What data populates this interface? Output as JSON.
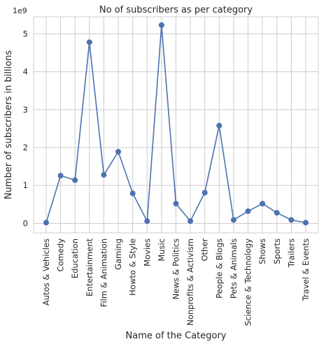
{
  "chart_data": {
    "type": "line",
    "title": "No of subscribers as per category",
    "xlabel": "Name of the Category",
    "ylabel": "Number of subscribers in billions",
    "y_offset_label": "1e9",
    "grid": true,
    "ylim": [
      -0.25,
      5.45
    ],
    "yticks": [
      0,
      1,
      2,
      3,
      4,
      5
    ],
    "ytick_labels": [
      "0",
      "1",
      "2",
      "3",
      "4",
      "5"
    ],
    "categories": [
      "Autos & Vehicles",
      "Comedy",
      "Education",
      "Entertainment",
      "Film & Animation",
      "Gaming",
      "Howto & Style",
      "Movies",
      "Music",
      "News & Politics",
      "Nonprofits & Activism",
      "Other",
      "People & Blogs",
      "Pets & Animals",
      "Science & Technology",
      "Shows",
      "Sports",
      "Trailers",
      "Travel & Events"
    ],
    "series": [
      {
        "values": [
          0.02,
          1.26,
          1.14,
          4.78,
          1.28,
          1.89,
          0.79,
          0.06,
          5.23,
          0.52,
          0.06,
          0.81,
          2.58,
          0.09,
          0.32,
          0.52,
          0.28,
          0.09,
          0.02
        ]
      }
    ],
    "color": "#4c72b0"
  }
}
